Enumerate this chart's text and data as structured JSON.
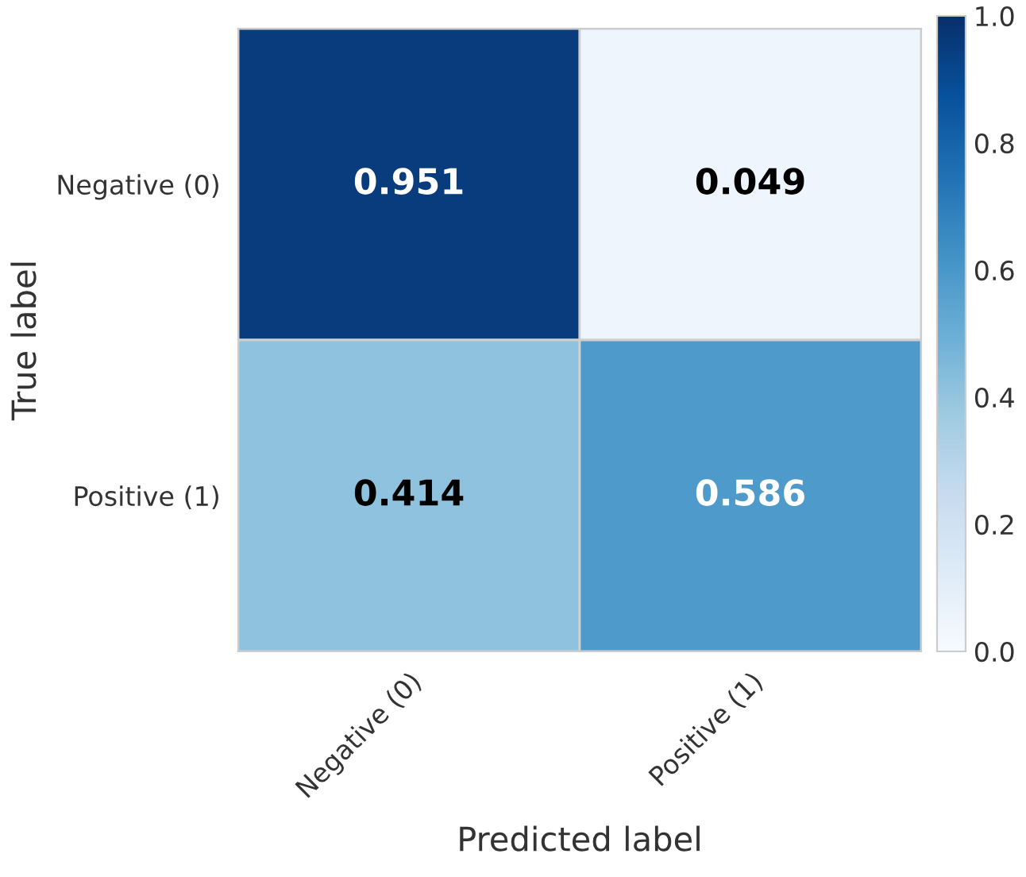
{
  "chart_data": {
    "type": "heatmap",
    "categories": [
      "Negative (0)",
      "Positive (1)"
    ],
    "y_categories": [
      "Negative (0)",
      "Positive (1)"
    ],
    "cells": [
      [
        0.951,
        0.049
      ],
      [
        0.414,
        0.586
      ]
    ],
    "xlabel": "Predicted label",
    "ylabel": "True label",
    "clim": [
      0,
      1
    ],
    "cticks": [
      {
        "value": 0,
        "label": "0.0"
      },
      {
        "value": 0.2,
        "label": "0.2"
      },
      {
        "value": 0.4,
        "label": "0.4"
      },
      {
        "value": 0.6,
        "label": "0.6"
      },
      {
        "value": 0.8,
        "label": "0.8"
      },
      {
        "value": 1,
        "label": "1.0"
      }
    ],
    "data_labels": true
  }
}
